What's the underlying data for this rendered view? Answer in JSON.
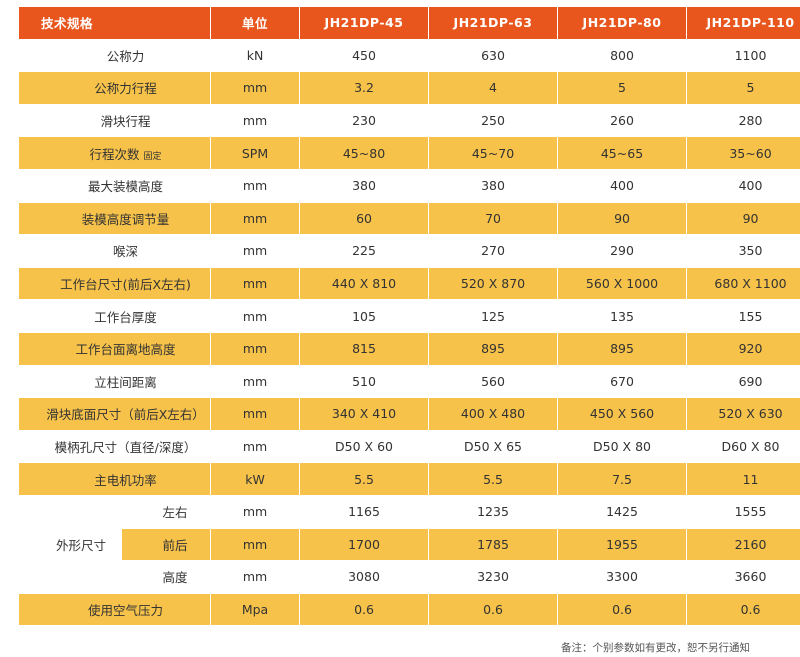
{
  "table": {
    "headers": [
      "技术规格",
      "单位",
      "JH21DP-45",
      "JH21DP-63",
      "JH21DP-80",
      "JH21DP-110"
    ],
    "rows": [
      {
        "name": "公称力",
        "unit": "kN",
        "values": [
          "450",
          "630",
          "800",
          "1100"
        ]
      },
      {
        "name": "公称力行程",
        "unit": "mm",
        "values": [
          "3.2",
          "4",
          "5",
          "5"
        ]
      },
      {
        "name": "滑块行程",
        "unit": "mm",
        "values": [
          "230",
          "250",
          "260",
          "280"
        ]
      },
      {
        "name": "行程次数",
        "name_note": "固定",
        "unit": "SPM",
        "values": [
          "45~80",
          "45~70",
          "45~65",
          "35~60"
        ]
      },
      {
        "name": "最大装模高度",
        "unit": "mm",
        "values": [
          "380",
          "380",
          "400",
          "400"
        ]
      },
      {
        "name": "装模高度调节量",
        "unit": "mm",
        "values": [
          "60",
          "70",
          "90",
          "90"
        ]
      },
      {
        "name": "喉深",
        "unit": "mm",
        "values": [
          "225",
          "270",
          "290",
          "350"
        ]
      },
      {
        "name": "工作台尺寸(前后X左右)",
        "unit": "mm",
        "values": [
          "440 X 810",
          "520 X 870",
          "560 X 1000",
          "680 X 1100"
        ]
      },
      {
        "name": "工作台厚度",
        "unit": "mm",
        "values": [
          "105",
          "125",
          "135",
          "155"
        ]
      },
      {
        "name": "工作台面离地高度",
        "unit": "mm",
        "values": [
          "815",
          "895",
          "895",
          "920"
        ]
      },
      {
        "name": "立柱间距离",
        "unit": "mm",
        "values": [
          "510",
          "560",
          "670",
          "690"
        ]
      },
      {
        "name": "滑块底面尺寸（前后X左右）",
        "unit": "mm",
        "values": [
          "340 X 410",
          "400 X 480",
          "450 X 560",
          "520 X 630"
        ]
      },
      {
        "name": "模柄孔尺寸（直径/深度）",
        "unit": "mm",
        "values": [
          "D50 X 60",
          "D50 X 65",
          "D50 X 80",
          "D60 X 80"
        ]
      },
      {
        "name": "主电机功率",
        "unit": "kW",
        "values": [
          "5.5",
          "5.5",
          "7.5",
          "11"
        ]
      }
    ],
    "group": {
      "name": "外形尺寸",
      "rows": [
        {
          "sub": "左右",
          "unit": "mm",
          "values": [
            "1165",
            "1235",
            "1425",
            "1555"
          ]
        },
        {
          "sub": "前后",
          "unit": "mm",
          "values": [
            "1700",
            "1785",
            "1955",
            "2160"
          ]
        },
        {
          "sub": "高度",
          "unit": "mm",
          "values": [
            "3080",
            "3230",
            "3300",
            "3660"
          ]
        }
      ]
    },
    "last_row": {
      "name": "使用空气压力",
      "unit": "Mpa",
      "values": [
        "0.6",
        "0.6",
        "0.6",
        "0.6"
      ]
    }
  },
  "footnote": "备注：个别参数如有更改，恕不另行通知",
  "colors": {
    "header": "#e8561e",
    "stripe": "#f6c24a",
    "plain": "#ffffff"
  }
}
